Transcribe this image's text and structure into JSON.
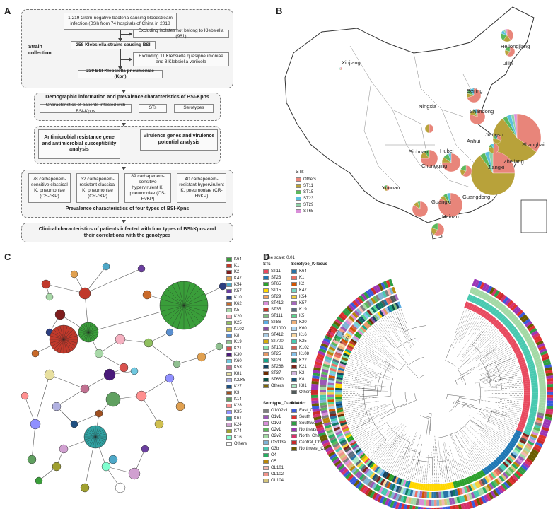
{
  "panels": {
    "a": "A",
    "b": "B",
    "c": "C",
    "d": "D"
  },
  "panel_a": {
    "top": "1,219 Gram-negative bacteria causing bloodstream infection (BSI) from 74 hospitals of China in 2018",
    "exclude1": "Excluding isolates not belong to Klebsiella (961)",
    "klebsiella": "258 Klebsiella strains causing BSI",
    "exclude2": "Excluding 11 Klebsiella quasipneumoniae and 8 Klebsiella variicola",
    "kpn": "239 BSI Klebsiella pneumoniae (Kpn)",
    "strain_label": "Strain collection",
    "demo_title": "Demographic information and prevalence characteristics of BSI-Kpns",
    "demo_sub1": "Characteristics of patients infected with BSI-Kpns",
    "demo_sub2": "STs",
    "demo_sub3": "Serotypes",
    "amr": "Antimicrobial resistance gene and antimicrobial susceptibility analysis",
    "vir": "Virulence genes and virulence potential analysis",
    "g1": "78 carbapenem-sensitive classical K. pneumoniae (CS-cKP)",
    "g2": "32 carbapenem-resistant classical K. pneumoniae (CR-cKP)",
    "g3": "89 carbapenem-sensitive hypervirulent K. pneumoniae (CS-HvKP)",
    "g4": "40 carbapenem-resistant hypervirulent K. pneumoniae (CR-HvKP)",
    "prev": "Prevalence characteristics of four types of BSI-Kpns",
    "clinical": "Clinical characteristics of patients infected with four types of BSI-Kpns and their correlations with the genotypes"
  },
  "panel_b": {
    "legend_title": "STs",
    "legend": [
      "Others",
      "ST11",
      "ST15",
      "ST23",
      "ST29",
      "ST65"
    ],
    "legend_colors": [
      "#e8857a",
      "#b8a23a",
      "#5cb85c",
      "#5bc0de",
      "#8fd3a8",
      "#d98fd9"
    ],
    "provinces": [
      "Xinjiang",
      "Heilongjiang",
      "Jilin",
      "Beijing",
      "Ningxia",
      "Shandong",
      "Shanghai",
      "Jiangsu",
      "Anhui",
      "Hubei",
      "Zhejiang",
      "Sichuan",
      "Chongqing",
      "Jiangxi",
      "Yunnan",
      "Guangxi",
      "Guangdong",
      "Hainan"
    ]
  },
  "panel_c": {
    "legend": [
      "K64",
      "K1",
      "K2",
      "K47",
      "K54",
      "K57",
      "K10",
      "K62",
      "K5",
      "K20",
      "K25",
      "K102",
      "K8",
      "K19",
      "K21",
      "K30",
      "K60",
      "K53",
      "K81",
      "K2/K5",
      "K27",
      "K3",
      "K14",
      "K28",
      "K35",
      "K61",
      "K24",
      "K74",
      "K16",
      "Others"
    ],
    "legend_colors": [
      "#3a9e3a",
      "#c0392b",
      "#7f1d1d",
      "#e0a050",
      "#4ea8c8",
      "#6b3fa0",
      "#2c3e80",
      "#c96a2a",
      "#a8d8a8",
      "#f5b0c0",
      "#8fbf5f",
      "#d0c050",
      "#5a8fd0",
      "#90c090",
      "#d9534f",
      "#4a1a7a",
      "#70c8e0",
      "#c07090",
      "#e8e0a0",
      "#b0b0e0",
      "#205080",
      "#a05020",
      "#60a060",
      "#ff9090",
      "#9090ff",
      "#30a0a0",
      "#d0a0d0",
      "#a0a030",
      "#80ffd0",
      "#ffffff"
    ]
  },
  "panel_d": {
    "tree_scale": "Tree scale: 0.01",
    "sts_title": "STs",
    "sts": [
      "ST11",
      "ST23",
      "ST65",
      "ST15",
      "ST29",
      "ST412",
      "ST35",
      "ST111",
      "ST86",
      "ST1000",
      "ST412",
      "ST700",
      "ST101",
      "ST25",
      "ST23",
      "ST268",
      "ST37",
      "ST660",
      "Others"
    ],
    "sts_colors": [
      "#e84a5f",
      "#1f77b4",
      "#2ca02c",
      "#ffd700",
      "#f4a261",
      "#d98fd9",
      "#c0392b",
      "#7fbf7f",
      "#5dade2",
      "#884ea0",
      "#a9cce3",
      "#d4ac0d",
      "#82e0aa",
      "#e59866",
      "#17a589",
      "#154360",
      "#6e2c00",
      "#0b5345",
      "#7d6608"
    ],
    "klocus_title": "Serotype_K-locus",
    "klocus": [
      "K64",
      "K1",
      "K2",
      "K47",
      "K54",
      "K57",
      "K19",
      "K5",
      "K20",
      "K60",
      "K16",
      "K25",
      "K102",
      "K108",
      "K22",
      "K21",
      "K2",
      "K8",
      "K81",
      "Others"
    ],
    "klocus_colors": [
      "#2874a6",
      "#ec7063",
      "#d35400",
      "#76d7c4",
      "#f4d03f",
      "#a569bd",
      "#5d6d7e",
      "#58d68d",
      "#f0b27a",
      "#aed6f1",
      "#fad7a0",
      "#48c9b0",
      "#cd6155",
      "#85c1e9",
      "#117864",
      "#7b241c",
      "#d2b4de",
      "#1a5276",
      "#abebc6",
      "#515a5a"
    ],
    "olocus_title": "Serotype_O-locus",
    "olocus": [
      "O1/O2v1",
      "O1v1",
      "O1v2",
      "O2v1",
      "O2v2",
      "O3/O3a",
      "O3b",
      "O4",
      "O5",
      "OL101",
      "OL102",
      "OL104"
    ],
    "olocus_colors": [
      "#808080",
      "#9b59b6",
      "#d98fd9",
      "#5cb85c",
      "#a3d9a5",
      "#7fb3d5",
      "#48c9b0",
      "#27ae60",
      "#b8860b",
      "#f5b7b1",
      "#f1948a",
      "#d4c47a"
    ],
    "district_title": "District",
    "district": [
      "East_China",
      "South_China",
      "Southwest_China",
      "Northeast_China",
      "North_China",
      "Central_China",
      "Northwest_China"
    ],
    "district_colors": [
      "#3b5bdb",
      "#e03131",
      "#2f9e44",
      "#9c36b5",
      "#d6336c",
      "#c92a2a",
      "#6b5b00"
    ],
    "ring_labels": [
      "District",
      "O-locus",
      "K-locus",
      "STs"
    ]
  }
}
